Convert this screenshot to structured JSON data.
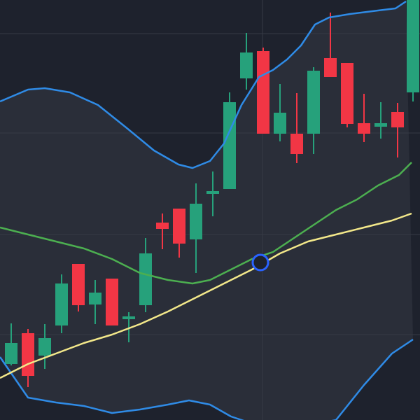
{
  "chart_data": {
    "type": "candlestick",
    "background": "#1e222d",
    "band_fill": "#2a2e39",
    "grid_color": "#363a45",
    "up_color": "#26a17b",
    "down_color": "#f23645",
    "xlim": [
      0,
      600
    ],
    "ylim": [
      0,
      600
    ],
    "xticks": [
      375
    ],
    "yticks": [
      122,
      265,
      410,
      552
    ],
    "grid": true,
    "x": [
      16,
      40,
      64,
      88,
      112,
      136,
      160,
      184,
      208,
      232,
      256,
      280,
      304,
      328,
      352,
      376,
      400,
      424,
      448,
      472,
      496,
      520,
      544,
      568,
      590
    ],
    "open": [
      80,
      124,
      92,
      135,
      223,
      165,
      202,
      144,
      164,
      282,
      302,
      258,
      323,
      330,
      488,
      527,
      409,
      409,
      409,
      517,
      510,
      424,
      419,
      440,
      468
    ],
    "high": [
      138,
      130,
      137,
      208,
      223,
      200,
      202,
      154,
      260,
      295,
      302,
      338,
      355,
      468,
      553,
      532,
      480,
      467,
      504,
      582,
      510,
      466,
      454,
      453,
      600
    ],
    "low": [
      78,
      47,
      73,
      124,
      155,
      137,
      135,
      111,
      154,
      244,
      232,
      210,
      291,
      330,
      472,
      409,
      398,
      367,
      380,
      490,
      418,
      397,
      402,
      375,
      455
    ],
    "close": [
      110,
      63,
      117,
      195,
      164,
      182,
      135,
      148,
      238,
      273,
      252,
      309,
      327,
      454,
      525,
      409,
      439,
      380,
      499,
      490,
      423,
      409,
      424,
      418,
      600
    ],
    "lines": [
      {
        "color": "#2f8be6",
        "x": [
          0,
          40,
          64,
          100,
          140,
          180,
          220,
          255,
          275,
          300,
          320,
          345,
          370,
          390,
          410,
          430,
          450,
          470,
          500,
          540,
          565,
          580
        ],
        "values": [
          455,
          472,
          474,
          468,
          450,
          418,
          385,
          365,
          360,
          370,
          395,
          450,
          490,
          500,
          515,
          535,
          565,
          575,
          580,
          585,
          588,
          598
        ]
      },
      {
        "color": "#2f8be6",
        "x": [
          0,
          40,
          80,
          120,
          160,
          200,
          240,
          270,
          300,
          330,
          375,
          430,
          480,
          520,
          560,
          590
        ],
        "values": [
          90,
          32,
          25,
          20,
          10,
          15,
          22,
          28,
          22,
          5,
          -10,
          -10,
          0,
          50,
          95,
          115
        ]
      },
      {
        "color": "#4caf50",
        "x": [
          0,
          40,
          80,
          120,
          160,
          200,
          240,
          275,
          300,
          330,
          360,
          390,
          420,
          450,
          480,
          510,
          540,
          570,
          588
        ],
        "values": [
          275,
          265,
          255,
          245,
          230,
          210,
          200,
          195,
          200,
          215,
          230,
          240,
          260,
          280,
          300,
          315,
          335,
          350,
          368
        ]
      },
      {
        "color": "#f3e88a",
        "x": [
          0,
          40,
          80,
          120,
          160,
          200,
          240,
          280,
          320,
          360,
          400,
          440,
          480,
          520,
          560,
          588
        ],
        "values": [
          60,
          80,
          95,
          110,
          122,
          137,
          155,
          175,
          195,
          215,
          238,
          255,
          265,
          275,
          285,
          295
        ]
      }
    ],
    "marker": {
      "x": 372,
      "y": 225,
      "color": "#2962ff"
    }
  }
}
